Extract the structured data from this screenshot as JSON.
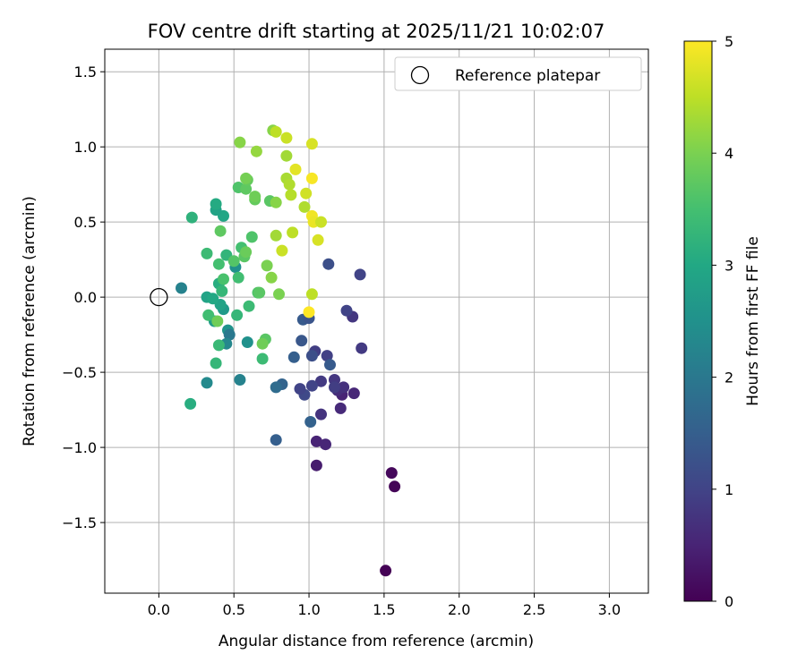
{
  "chart_data": {
    "type": "scatter",
    "title": "FOV centre drift starting at 2025/11/21 10:02:07",
    "xlabel": "Angular distance from reference (arcmin)",
    "ylabel": "Rotation from reference (arcmin)",
    "xlim": [
      -0.36,
      3.26
    ],
    "ylim": [
      -1.97,
      1.65
    ],
    "xticks": [
      0.0,
      0.5,
      1.0,
      1.5,
      2.0,
      2.5,
      3.0
    ],
    "xtick_labels": [
      "0.0",
      "0.5",
      "1.0",
      "1.5",
      "2.0",
      "2.5",
      "3.0"
    ],
    "yticks": [
      -1.5,
      -1.0,
      -0.5,
      0.0,
      0.5,
      1.0,
      1.5
    ],
    "ytick_labels": [
      "−1.5",
      "−1.0",
      "−0.5",
      "0.0",
      "0.5",
      "1.0",
      "1.5"
    ],
    "grid": true,
    "legend": {
      "position": "top-right",
      "entries": [
        "Reference platepar"
      ]
    },
    "reference_point": {
      "x": 0.0,
      "y": 0.0
    },
    "colorbar": {
      "label": "Hours from first FF file",
      "range": [
        0,
        5
      ],
      "ticks": [
        0,
        1,
        2,
        3,
        4,
        5
      ],
      "tick_labels": [
        "0",
        "1",
        "2",
        "3",
        "4",
        "5"
      ],
      "colormap": "viridis"
    },
    "points": [
      {
        "x": 1.51,
        "y": -1.82,
        "t": 0.02
      },
      {
        "x": 1.57,
        "y": -1.26,
        "t": 0.05
      },
      {
        "x": 1.55,
        "y": -1.17,
        "t": 0.1
      },
      {
        "x": 1.05,
        "y": -1.12,
        "t": 0.4
      },
      {
        "x": 1.05,
        "y": -0.96,
        "t": 0.5
      },
      {
        "x": 1.11,
        "y": -0.98,
        "t": 0.55
      },
      {
        "x": 1.21,
        "y": -0.74,
        "t": 0.6
      },
      {
        "x": 1.22,
        "y": -0.65,
        "t": 0.5
      },
      {
        "x": 1.19,
        "y": -0.62,
        "t": 0.65
      },
      {
        "x": 1.23,
        "y": -0.6,
        "t": 0.7
      },
      {
        "x": 1.3,
        "y": -0.64,
        "t": 0.55
      },
      {
        "x": 1.17,
        "y": -0.55,
        "t": 0.8
      },
      {
        "x": 1.17,
        "y": -0.6,
        "t": 0.9
      },
      {
        "x": 1.08,
        "y": -0.78,
        "t": 0.75
      },
      {
        "x": 1.08,
        "y": -0.56,
        "t": 0.85
      },
      {
        "x": 1.02,
        "y": -0.59,
        "t": 1.0
      },
      {
        "x": 0.97,
        "y": -0.65,
        "t": 1.1
      },
      {
        "x": 0.94,
        "y": -0.61,
        "t": 1.0
      },
      {
        "x": 1.12,
        "y": -0.39,
        "t": 0.95
      },
      {
        "x": 1.14,
        "y": -0.45,
        "t": 1.4
      },
      {
        "x": 1.04,
        "y": -0.36,
        "t": 0.9
      },
      {
        "x": 1.02,
        "y": -0.39,
        "t": 1.2
      },
      {
        "x": 1.35,
        "y": -0.34,
        "t": 0.85
      },
      {
        "x": 1.29,
        "y": -0.13,
        "t": 0.8
      },
      {
        "x": 1.25,
        "y": -0.09,
        "t": 1.0
      },
      {
        "x": 1.34,
        "y": 0.15,
        "t": 1.0
      },
      {
        "x": 1.13,
        "y": 0.22,
        "t": 1.2
      },
      {
        "x": 0.95,
        "y": -0.29,
        "t": 1.35
      },
      {
        "x": 0.9,
        "y": -0.4,
        "t": 1.5
      },
      {
        "x": 0.96,
        "y": -0.15,
        "t": 1.4
      },
      {
        "x": 1.0,
        "y": -0.14,
        "t": 1.3
      },
      {
        "x": 1.01,
        "y": -0.83,
        "t": 1.55
      },
      {
        "x": 0.78,
        "y": -0.95,
        "t": 1.5
      },
      {
        "x": 0.82,
        "y": -0.58,
        "t": 1.6
      },
      {
        "x": 0.78,
        "y": -0.6,
        "t": 1.75
      },
      {
        "x": 0.54,
        "y": -0.55,
        "t": 2.2
      },
      {
        "x": 0.32,
        "y": -0.57,
        "t": 2.35
      },
      {
        "x": 0.21,
        "y": -0.71,
        "t": 3.1
      },
      {
        "x": 0.15,
        "y": 0.06,
        "t": 2.2
      },
      {
        "x": 0.59,
        "y": -0.3,
        "t": 2.5
      },
      {
        "x": 0.46,
        "y": -0.22,
        "t": 2.55
      },
      {
        "x": 0.47,
        "y": -0.25,
        "t": 2.0
      },
      {
        "x": 0.45,
        "y": -0.31,
        "t": 2.3
      },
      {
        "x": 0.51,
        "y": 0.2,
        "t": 2.5
      },
      {
        "x": 0.43,
        "y": -0.08,
        "t": 2.7
      },
      {
        "x": 0.41,
        "y": -0.05,
        "t": 2.9
      },
      {
        "x": 0.37,
        "y": -0.16,
        "t": 2.75
      },
      {
        "x": 0.32,
        "y": 0.0,
        "t": 2.9
      },
      {
        "x": 0.36,
        "y": -0.01,
        "t": 3.0
      },
      {
        "x": 0.43,
        "y": 0.54,
        "t": 2.95
      },
      {
        "x": 0.38,
        "y": 0.58,
        "t": 2.9
      },
      {
        "x": 0.38,
        "y": 0.62,
        "t": 3.05
      },
      {
        "x": 0.22,
        "y": 0.53,
        "t": 3.2
      },
      {
        "x": 0.4,
        "y": 0.09,
        "t": 3.1
      },
      {
        "x": 0.45,
        "y": 0.28,
        "t": 3.25
      },
      {
        "x": 0.38,
        "y": -0.44,
        "t": 3.3
      },
      {
        "x": 0.4,
        "y": -0.32,
        "t": 3.35
      },
      {
        "x": 0.33,
        "y": -0.12,
        "t": 3.45
      },
      {
        "x": 0.32,
        "y": 0.29,
        "t": 3.4
      },
      {
        "x": 0.4,
        "y": 0.22,
        "t": 3.5
      },
      {
        "x": 0.43,
        "y": 0.12,
        "t": 3.55
      },
      {
        "x": 0.42,
        "y": 0.04,
        "t": 3.3
      },
      {
        "x": 0.52,
        "y": -0.12,
        "t": 3.3
      },
      {
        "x": 0.6,
        "y": -0.06,
        "t": 3.4
      },
      {
        "x": 0.53,
        "y": 0.13,
        "t": 3.45
      },
      {
        "x": 0.55,
        "y": 0.33,
        "t": 3.5
      },
      {
        "x": 0.62,
        "y": 0.4,
        "t": 3.6
      },
      {
        "x": 0.5,
        "y": 0.24,
        "t": 3.65
      },
      {
        "x": 0.57,
        "y": 0.27,
        "t": 3.7
      },
      {
        "x": 0.41,
        "y": 0.44,
        "t": 3.75
      },
      {
        "x": 0.58,
        "y": 0.3,
        "t": 3.85
      },
      {
        "x": 0.39,
        "y": -0.16,
        "t": 3.9
      },
      {
        "x": 0.53,
        "y": 0.73,
        "t": 3.6
      },
      {
        "x": 0.58,
        "y": 0.72,
        "t": 3.75
      },
      {
        "x": 0.59,
        "y": 0.78,
        "t": 3.8
      },
      {
        "x": 0.58,
        "y": 0.79,
        "t": 3.95
      },
      {
        "x": 0.64,
        "y": 0.65,
        "t": 3.8
      },
      {
        "x": 0.64,
        "y": 0.67,
        "t": 3.9
      },
      {
        "x": 0.66,
        "y": 0.03,
        "t": 3.6
      },
      {
        "x": 0.67,
        "y": 0.03,
        "t": 3.7
      },
      {
        "x": 0.69,
        "y": -0.41,
        "t": 3.4
      },
      {
        "x": 0.71,
        "y": -0.28,
        "t": 3.7
      },
      {
        "x": 0.69,
        "y": -0.31,
        "t": 3.9
      },
      {
        "x": 0.72,
        "y": 0.21,
        "t": 4.0
      },
      {
        "x": 0.74,
        "y": 0.64,
        "t": 3.7
      },
      {
        "x": 0.75,
        "y": 0.13,
        "t": 4.1
      },
      {
        "x": 0.76,
        "y": 1.11,
        "t": 4.1
      },
      {
        "x": 0.8,
        "y": 0.02,
        "t": 4.0
      },
      {
        "x": 0.78,
        "y": 0.63,
        "t": 4.1
      },
      {
        "x": 0.78,
        "y": 0.41,
        "t": 4.3
      },
      {
        "x": 0.82,
        "y": 0.31,
        "t": 4.6
      },
      {
        "x": 0.78,
        "y": 1.1,
        "t": 4.5
      },
      {
        "x": 0.85,
        "y": 1.06,
        "t": 4.6
      },
      {
        "x": 0.54,
        "y": 1.03,
        "t": 4.1
      },
      {
        "x": 0.65,
        "y": 0.97,
        "t": 4.2
      },
      {
        "x": 0.85,
        "y": 0.94,
        "t": 4.3
      },
      {
        "x": 0.85,
        "y": 0.79,
        "t": 4.35
      },
      {
        "x": 0.87,
        "y": 0.75,
        "t": 4.4
      },
      {
        "x": 0.88,
        "y": 0.68,
        "t": 4.45
      },
      {
        "x": 0.89,
        "y": 0.43,
        "t": 4.5
      },
      {
        "x": 0.91,
        "y": 0.85,
        "t": 4.8
      },
      {
        "x": 0.97,
        "y": 0.6,
        "t": 4.4
      },
      {
        "x": 0.98,
        "y": 0.69,
        "t": 4.65
      },
      {
        "x": 1.02,
        "y": 0.79,
        "t": 4.95
      },
      {
        "x": 1.02,
        "y": 1.02,
        "t": 4.7
      },
      {
        "x": 1.02,
        "y": 0.54,
        "t": 4.9
      },
      {
        "x": 1.03,
        "y": 0.5,
        "t": 4.85
      },
      {
        "x": 1.08,
        "y": 0.5,
        "t": 4.6
      },
      {
        "x": 1.06,
        "y": 0.38,
        "t": 4.7
      },
      {
        "x": 1.02,
        "y": 0.02,
        "t": 4.5
      },
      {
        "x": 1.0,
        "y": -0.1,
        "t": 5.0
      }
    ]
  }
}
